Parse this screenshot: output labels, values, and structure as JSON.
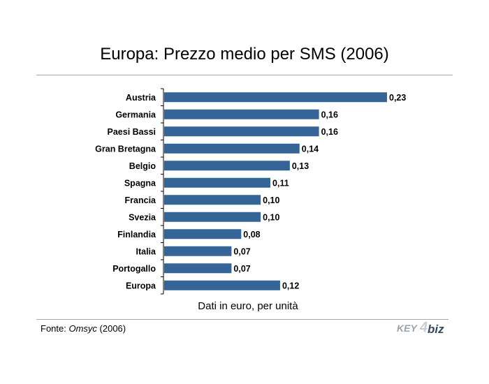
{
  "chart_data": {
    "type": "bar",
    "orientation": "horizontal",
    "title": "Europa: Prezzo medio per SMS (2006)",
    "xlabel": "Dati in euro, per unità",
    "ylabel": "",
    "categories": [
      "Austria",
      "Germania",
      "Paesi Bassi",
      "Gran Bretagna",
      "Belgio",
      "Spagna",
      "Francia",
      "Svezia",
      "Finlandia",
      "Italia",
      "Portogallo",
      "Europa"
    ],
    "values": [
      0.23,
      0.16,
      0.16,
      0.14,
      0.13,
      0.11,
      0.1,
      0.1,
      0.08,
      0.07,
      0.07,
      0.12
    ],
    "value_labels": [
      "0,23",
      "0,16",
      "0,16",
      "0,14",
      "0,13",
      "0,11",
      "0,10",
      "0,10",
      "0,08",
      "0,07",
      "0,07",
      "0,12"
    ],
    "xlim": [
      0,
      0.23
    ],
    "grid": false,
    "colors": {
      "bar": "#356596"
    }
  },
  "footer": {
    "source_prefix": "Fonte: ",
    "source_name": "Omsyc",
    "source_suffix": " (2006)"
  },
  "logo": {
    "key": "KEY",
    "four": "4",
    "biz": "biz"
  }
}
